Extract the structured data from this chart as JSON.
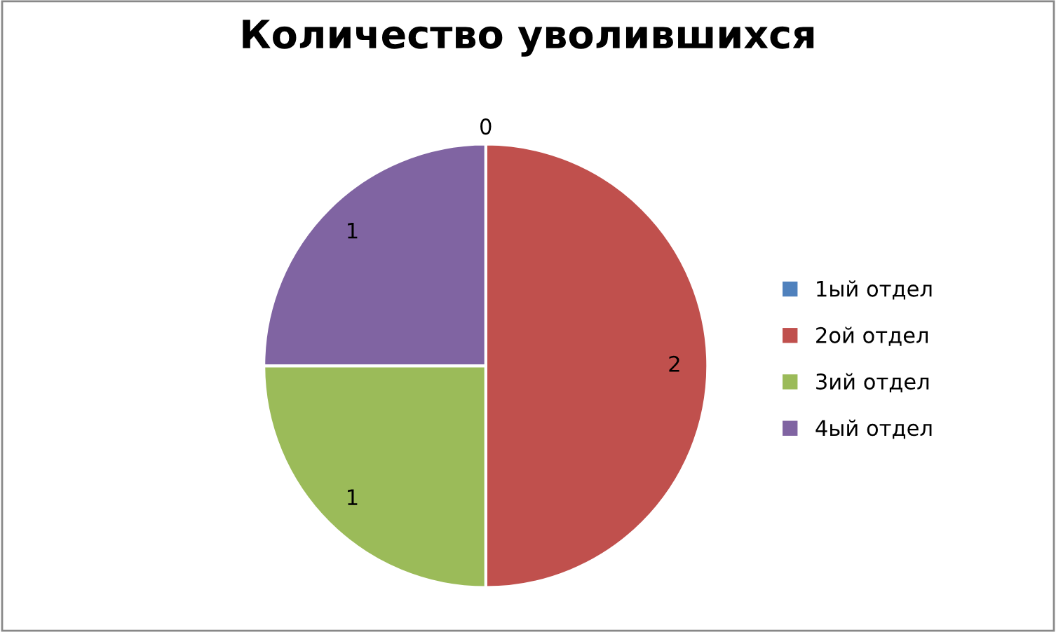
{
  "chart_data": {
    "type": "pie",
    "title": "Количество уволившихся",
    "categories": [
      "1ый отдел",
      "2ой отдел",
      "3ий отдел",
      "4ый отдел"
    ],
    "values": [
      0,
      2,
      1,
      1
    ],
    "colors": [
      "#4f81bd",
      "#c0504d",
      "#9bbb59",
      "#8064a2"
    ],
    "value_labels": [
      "0",
      "2",
      "1",
      "1"
    ],
    "legend": "right"
  }
}
